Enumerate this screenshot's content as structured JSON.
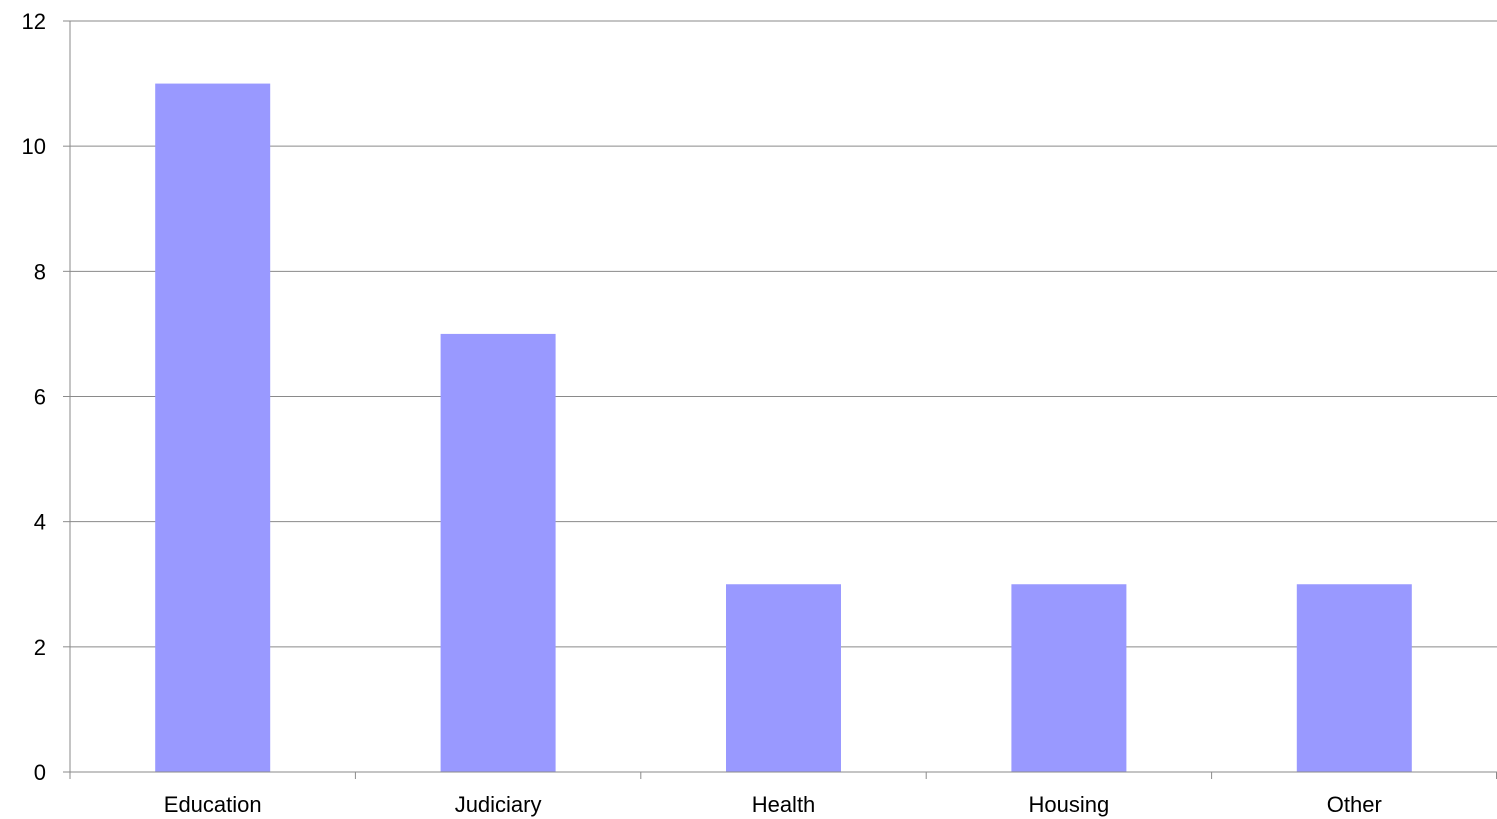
{
  "chart_data": {
    "type": "bar",
    "title": "",
    "xlabel": "",
    "ylabel": "",
    "categories": [
      "Education",
      "Judiciary",
      "Health",
      "Housing",
      "Other"
    ],
    "values": [
      11,
      7,
      3,
      3,
      3
    ],
    "ylim": [
      0,
      12
    ],
    "yticks": [
      0,
      2,
      4,
      6,
      8,
      10,
      12
    ],
    "grid": true,
    "legend": "none",
    "bar_color": "#9999FF",
    "grid_color": "#8A8A8A"
  }
}
